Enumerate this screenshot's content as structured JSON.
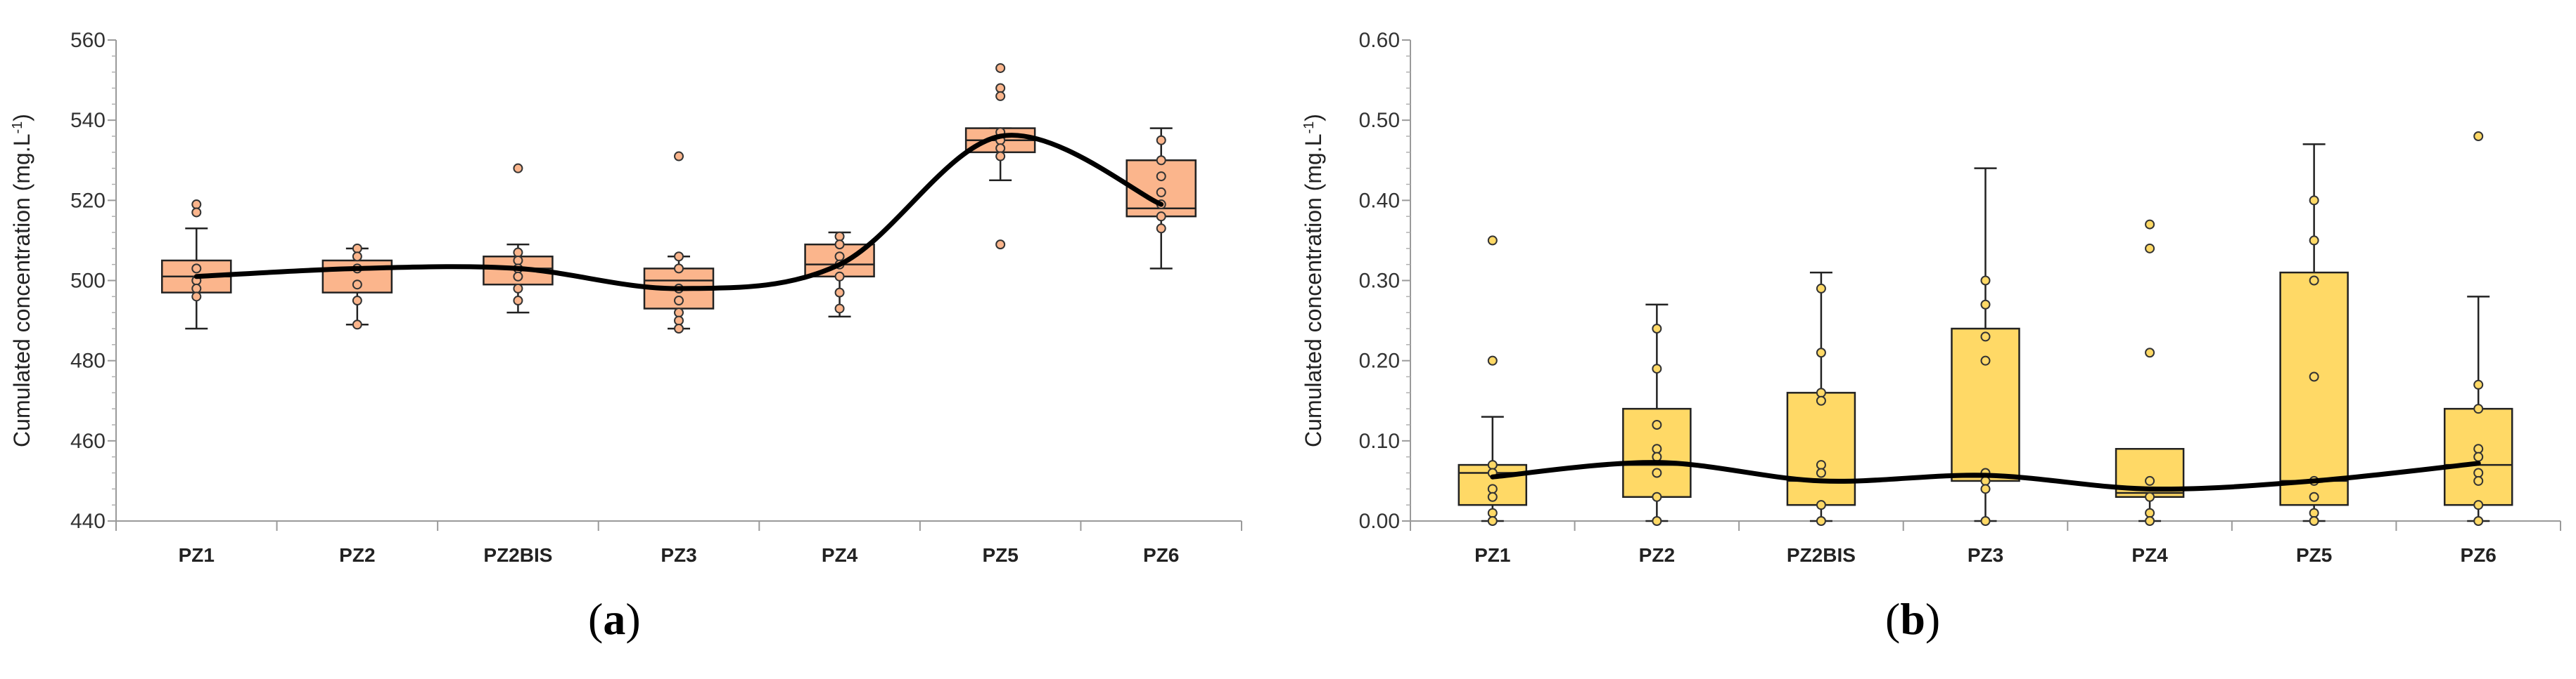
{
  "chart_data": [
    {
      "id": "a",
      "type": "box",
      "panel_label": "a",
      "ylabel": "Cumulated concentration (mg.L",
      "ylabel_sup": "-1",
      "ylabel_end": ")",
      "ylim": [
        440,
        560
      ],
      "yticks": [
        440,
        460,
        480,
        500,
        520,
        540,
        560
      ],
      "ytick_labels": [
        "440",
        "460",
        "480",
        "500",
        "520",
        "540",
        "560"
      ],
      "categories": [
        "PZ1",
        "PZ2",
        "PZ2BIS",
        "PZ3",
        "PZ4",
        "PZ5",
        "PZ6"
      ],
      "fill": "#FBB58C",
      "point_fill": "#FBB58C",
      "boxes": [
        {
          "min": 488,
          "q1": 497,
          "median": 501,
          "q3": 505,
          "max": 513,
          "points": [
            519,
            517,
            503,
            500,
            498,
            496
          ]
        },
        {
          "min": 489,
          "q1": 497,
          "median": 503,
          "q3": 505,
          "max": 508,
          "points": [
            508,
            506,
            503,
            499,
            495,
            489
          ]
        },
        {
          "min": 492,
          "q1": 499,
          "median": 503,
          "q3": 506,
          "max": 509,
          "points": [
            528,
            507,
            505,
            503,
            501,
            498,
            495
          ]
        },
        {
          "min": 488,
          "q1": 493,
          "median": 500,
          "q3": 503,
          "max": 506,
          "points": [
            531,
            506,
            503,
            498,
            495,
            492,
            490,
            488
          ]
        },
        {
          "min": 491,
          "q1": 501,
          "median": 504,
          "q3": 509,
          "max": 512,
          "points": [
            511,
            509,
            506,
            504,
            501,
            497,
            493
          ]
        },
        {
          "min": 525,
          "q1": 532,
          "median": 535,
          "q3": 538,
          "max": 538,
          "points": [
            553,
            548,
            546,
            537,
            535,
            533,
            531,
            509
          ]
        },
        {
          "min": 503,
          "q1": 516,
          "median": 518,
          "q3": 530,
          "max": 538,
          "points": [
            535,
            530,
            526,
            522,
            519,
            516,
            513
          ]
        }
      ],
      "trend": [
        501,
        503,
        503,
        498,
        504,
        536,
        519
      ]
    },
    {
      "id": "b",
      "type": "box",
      "panel_label": "b",
      "ylabel": "Cumulated concentration (mg.L",
      "ylabel_sup": "-1",
      "ylabel_end": ")",
      "ylim": [
        0,
        0.6
      ],
      "yticks": [
        0,
        0.1,
        0.2,
        0.3,
        0.4,
        0.5,
        0.6
      ],
      "ytick_labels": [
        "0.00",
        "0.10",
        "0.20",
        "0.30",
        "0.40",
        "0.50",
        "0.60"
      ],
      "categories": [
        "PZ1",
        "PZ2",
        "PZ2BIS",
        "PZ3",
        "PZ4",
        "PZ5",
        "PZ6"
      ],
      "fill": "#FFD966",
      "point_fill": "#FFD966",
      "boxes": [
        {
          "min": 0.0,
          "q1": 0.02,
          "median": 0.06,
          "q3": 0.07,
          "max": 0.13,
          "points": [
            0.35,
            0.2,
            0.07,
            0.06,
            0.04,
            0.03,
            0.01,
            0.0
          ]
        },
        {
          "min": 0.0,
          "q1": 0.03,
          "median": 0.07,
          "q3": 0.14,
          "max": 0.27,
          "points": [
            0.24,
            0.19,
            0.12,
            0.09,
            0.08,
            0.06,
            0.03,
            0.0
          ]
        },
        {
          "min": 0.0,
          "q1": 0.02,
          "median": 0.05,
          "q3": 0.16,
          "max": 0.31,
          "points": [
            0.29,
            0.21,
            0.16,
            0.15,
            0.07,
            0.06,
            0.02,
            0.0
          ]
        },
        {
          "min": 0.0,
          "q1": 0.05,
          "median": 0.055,
          "q3": 0.24,
          "max": 0.44,
          "points": [
            0.3,
            0.27,
            0.23,
            0.2,
            0.06,
            0.05,
            0.04,
            0.0
          ]
        },
        {
          "min": 0.0,
          "q1": 0.03,
          "median": 0.035,
          "q3": 0.09,
          "max": 0.09,
          "points": [
            0.37,
            0.34,
            0.21,
            0.05,
            0.03,
            0.01,
            0.0
          ]
        },
        {
          "min": 0.0,
          "q1": 0.02,
          "median": 0.05,
          "q3": 0.31,
          "max": 0.47,
          "points": [
            0.4,
            0.35,
            0.3,
            0.18,
            0.05,
            0.03,
            0.01,
            0.0
          ]
        },
        {
          "min": 0.0,
          "q1": 0.02,
          "median": 0.07,
          "q3": 0.14,
          "max": 0.28,
          "points": [
            0.48,
            0.17,
            0.14,
            0.09,
            0.08,
            0.06,
            0.05,
            0.02,
            0.0
          ]
        }
      ],
      "trend": [
        0.055,
        0.073,
        0.05,
        0.057,
        0.04,
        0.05,
        0.072
      ]
    }
  ]
}
